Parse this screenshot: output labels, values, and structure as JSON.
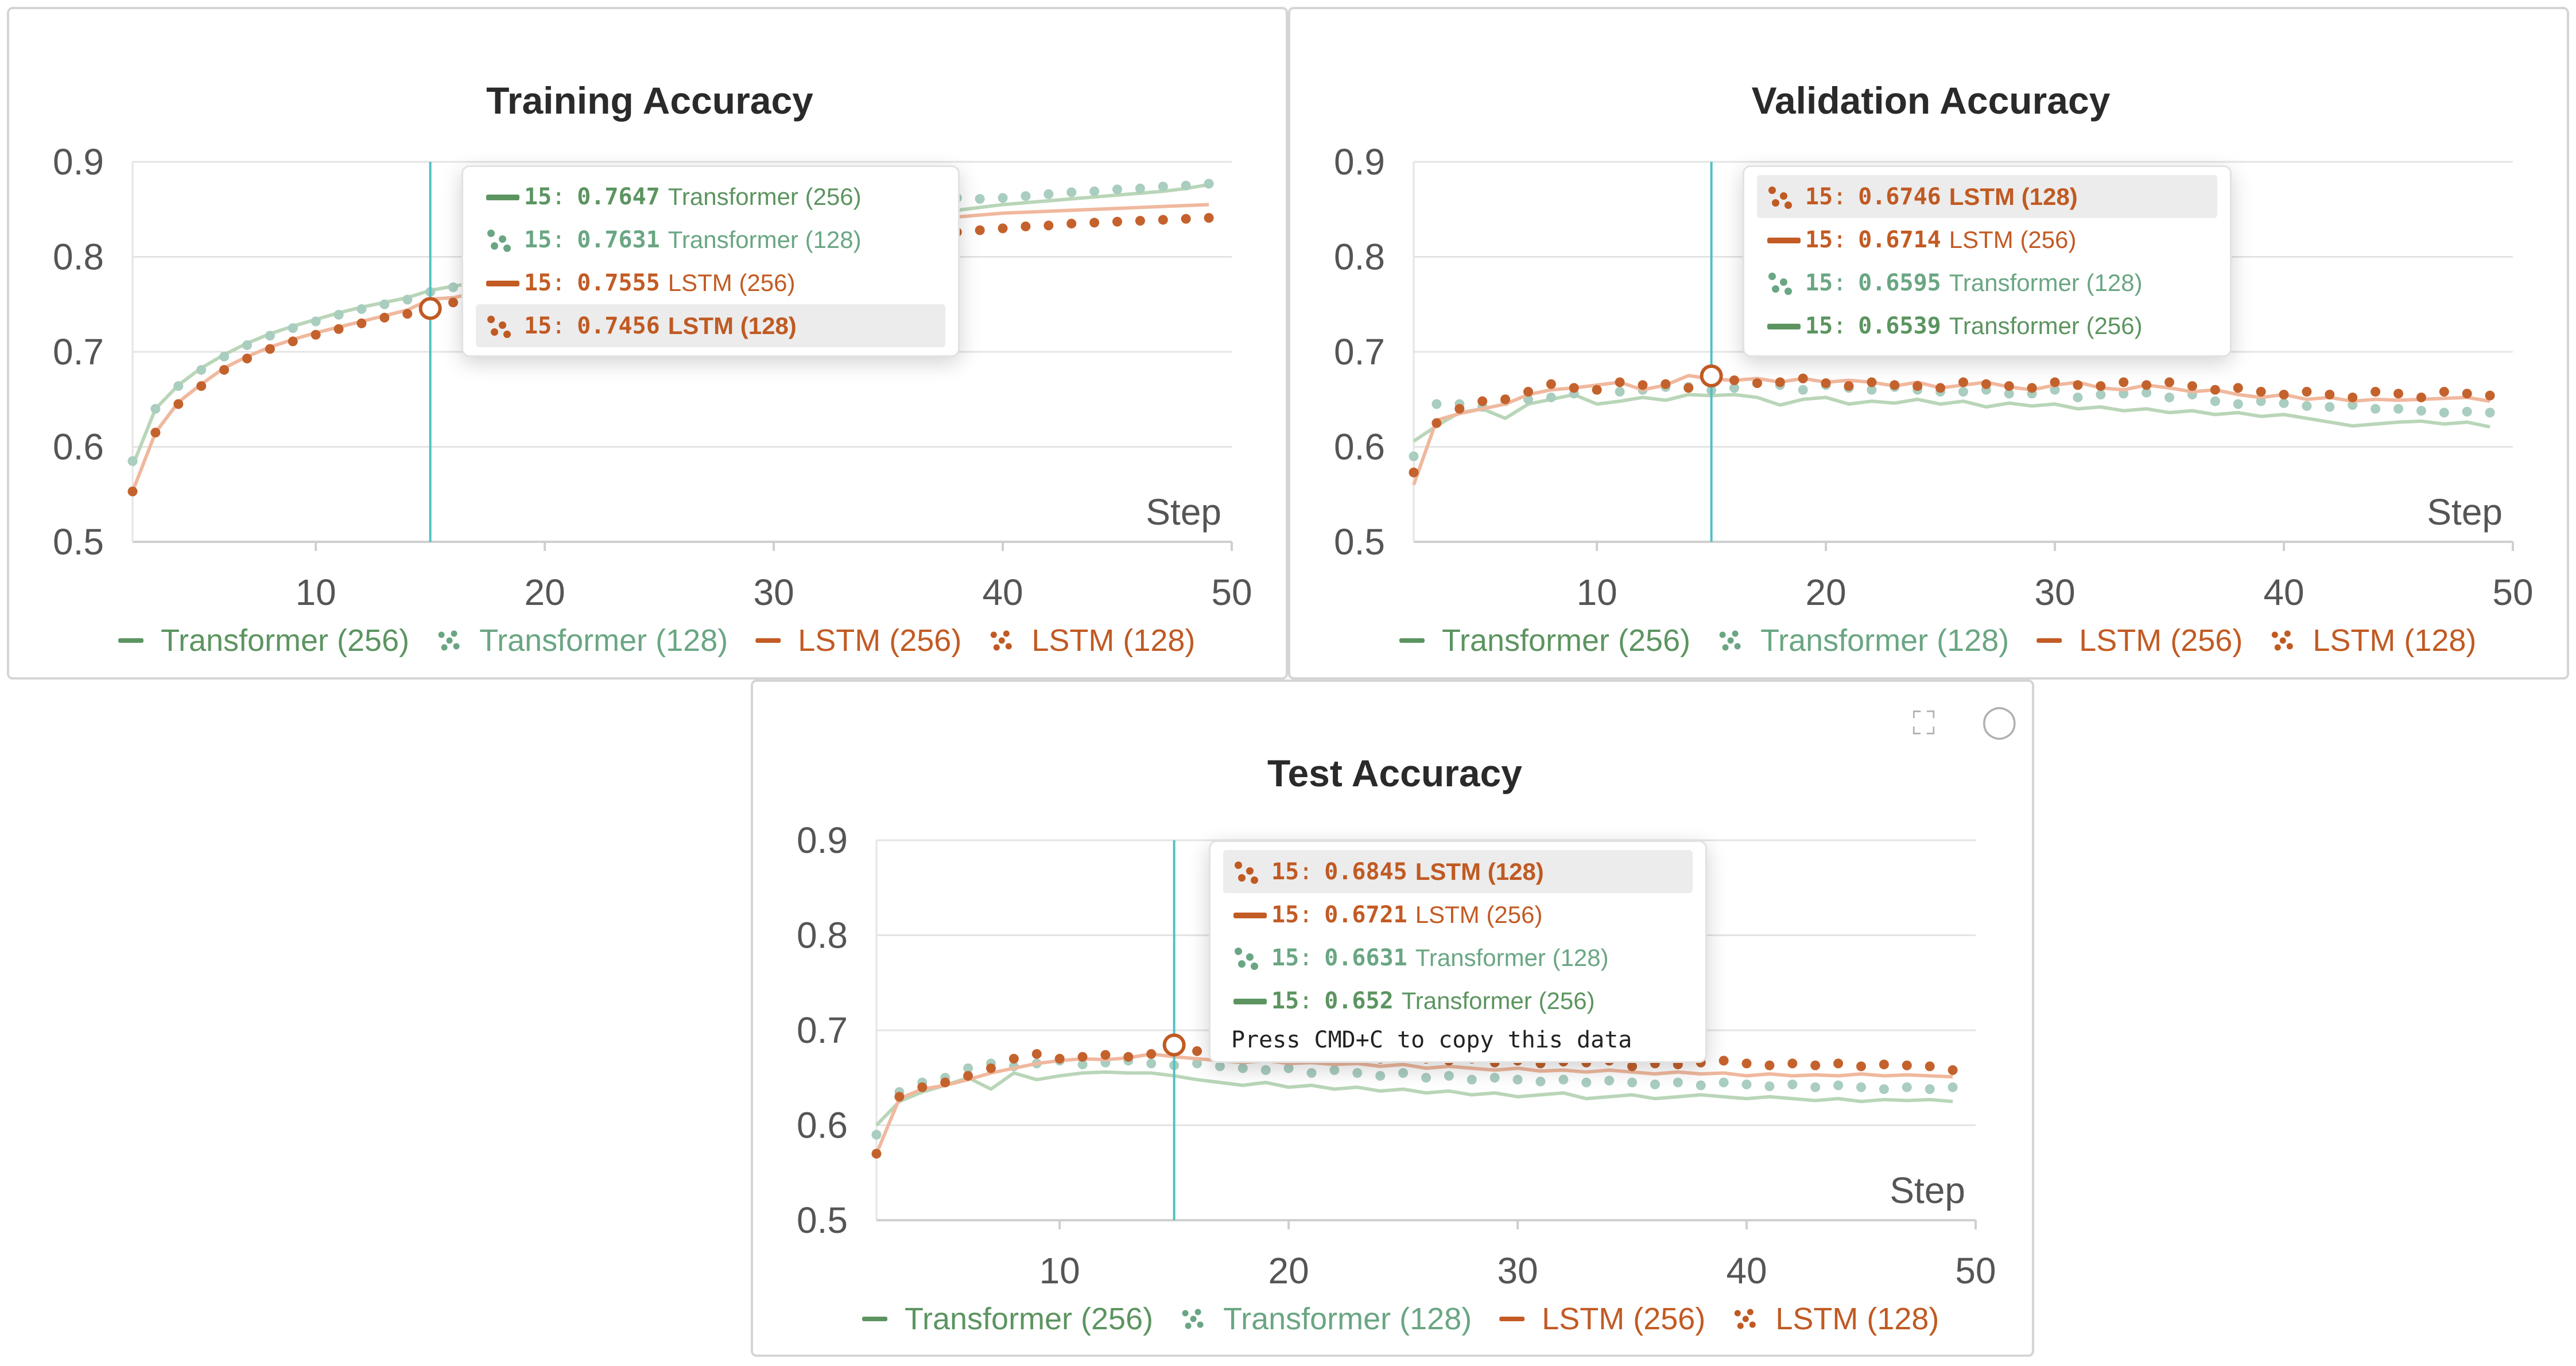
{
  "colors": {
    "transformer_256": "#5c9460",
    "transformer_128": "#6aa683",
    "lstm_256": "#c25b24",
    "lstm_128": "#c05a23",
    "transformer_256_line": "#b9d6b8",
    "transformer_128_dot": "#a9cdbf",
    "lstm_256_line": "#f0b89e",
    "lstm_128_dot": "#c4622d",
    "cursor": "#4fc1c3",
    "grid": "#e4e4e4"
  },
  "icons": {
    "expand": "expand-icon",
    "comment": "comment-icon"
  },
  "chart_data": [
    {
      "type": "line",
      "title": "Training Accuracy",
      "xlabel": "Step",
      "xlim": [
        2,
        50
      ],
      "ylim": [
        0.5,
        0.9
      ],
      "yticks": [
        "0.5",
        "0.6",
        "0.7",
        "0.8",
        "0.9"
      ],
      "xticks": [
        "10",
        "20",
        "30",
        "40",
        "50"
      ],
      "x": [
        2,
        3,
        4,
        5,
        6,
        7,
        8,
        9,
        10,
        11,
        12,
        13,
        14,
        15,
        16,
        17,
        18,
        19,
        20,
        21,
        22,
        23,
        24,
        25,
        26,
        27,
        28,
        29,
        30,
        31,
        32,
        33,
        34,
        35,
        36,
        37,
        38,
        39,
        40,
        41,
        42,
        43,
        44,
        45,
        46,
        47,
        48,
        49
      ],
      "series": [
        {
          "name": "Transformer (256)",
          "style": "line",
          "values": [
            0.58,
            0.64,
            0.665,
            0.683,
            0.697,
            0.709,
            0.719,
            0.727,
            0.734,
            0.741,
            0.747,
            0.752,
            0.757,
            0.7647,
            0.769,
            0.773,
            0.777,
            0.781,
            0.785,
            0.789,
            0.793,
            0.797,
            0.801,
            0.805,
            0.809,
            0.812,
            0.816,
            0.819,
            0.823,
            0.826,
            0.83,
            0.833,
            0.837,
            0.84,
            0.843,
            0.846,
            0.849,
            0.852,
            0.855,
            0.857,
            0.859,
            0.861,
            0.863,
            0.865,
            0.867,
            0.869,
            0.872,
            0.876
          ]
        },
        {
          "name": "Transformer (128)",
          "style": "dots",
          "values": [
            0.585,
            0.64,
            0.664,
            0.681,
            0.695,
            0.707,
            0.717,
            0.725,
            0.732,
            0.739,
            0.745,
            0.75,
            0.755,
            0.7631,
            0.768,
            0.772,
            0.776,
            0.78,
            0.784,
            0.788,
            0.792,
            0.796,
            0.8,
            0.804,
            0.808,
            0.812,
            0.816,
            0.82,
            0.824,
            0.828,
            0.832,
            0.836,
            0.84,
            0.845,
            0.85,
            0.856,
            0.862,
            0.861,
            0.862,
            0.864,
            0.866,
            0.868,
            0.869,
            0.871,
            0.872,
            0.874,
            0.875,
            0.877
          ]
        },
        {
          "name": "LSTM (256)",
          "style": "line",
          "values": [
            0.553,
            0.615,
            0.647,
            0.666,
            0.683,
            0.695,
            0.705,
            0.713,
            0.72,
            0.726,
            0.732,
            0.738,
            0.744,
            0.7555,
            0.757,
            0.762,
            0.767,
            0.772,
            0.777,
            0.782,
            0.787,
            0.791,
            0.796,
            0.8,
            0.804,
            0.808,
            0.812,
            0.816,
            0.82,
            0.823,
            0.826,
            0.829,
            0.832,
            0.835,
            0.838,
            0.84,
            0.842,
            0.844,
            0.846,
            0.847,
            0.848,
            0.849,
            0.85,
            0.851,
            0.852,
            0.853,
            0.854,
            0.855
          ]
        },
        {
          "name": "LSTM (128)",
          "style": "dots",
          "values": [
            0.553,
            0.615,
            0.645,
            0.664,
            0.681,
            0.693,
            0.703,
            0.711,
            0.718,
            0.724,
            0.73,
            0.736,
            0.74,
            0.7456,
            0.752,
            0.757,
            0.762,
            0.767,
            0.772,
            0.777,
            0.782,
            0.786,
            0.79,
            0.794,
            0.798,
            0.801,
            0.804,
            0.807,
            0.81,
            0.812,
            0.814,
            0.816,
            0.818,
            0.82,
            0.822,
            0.824,
            0.826,
            0.828,
            0.83,
            0.832,
            0.833,
            0.835,
            0.836,
            0.837,
            0.838,
            0.839,
            0.84,
            0.841
          ]
        }
      ],
      "cursor_step": 15,
      "tooltip": {
        "rows": [
          {
            "series": "Transformer (256)",
            "step": "15",
            "value": "0.7647",
            "mark": "line",
            "highlight": false
          },
          {
            "series": "Transformer (128)",
            "step": "15",
            "value": "0.7631",
            "mark": "dots",
            "highlight": false
          },
          {
            "series": "LSTM (256)",
            "step": "15",
            "value": "0.7555",
            "mark": "line",
            "highlight": false
          },
          {
            "series": "LSTM (128)",
            "step": "15",
            "value": "0.7456",
            "mark": "dots",
            "highlight": true
          }
        ]
      },
      "legend": [
        "Transformer (256)",
        "Transformer (128)",
        "LSTM (256)",
        "LSTM (128)"
      ],
      "legend_position": "bottom"
    },
    {
      "type": "line",
      "title": "Validation Accuracy",
      "xlabel": "Step",
      "xlim": [
        2,
        50
      ],
      "ylim": [
        0.5,
        0.9
      ],
      "yticks": [
        "0.5",
        "0.6",
        "0.7",
        "0.8",
        "0.9"
      ],
      "xticks": [
        "10",
        "20",
        "30",
        "40",
        "50"
      ],
      "x": [
        2,
        3,
        4,
        5,
        6,
        7,
        8,
        9,
        10,
        11,
        12,
        13,
        14,
        15,
        16,
        17,
        18,
        19,
        20,
        21,
        22,
        23,
        24,
        25,
        26,
        27,
        28,
        29,
        30,
        31,
        32,
        33,
        34,
        35,
        36,
        37,
        38,
        39,
        40,
        41,
        42,
        43,
        44,
        45,
        46,
        47,
        48,
        49
      ],
      "series": [
        {
          "name": "Transformer (256)",
          "style": "line",
          "values": [
            0.606,
            0.622,
            0.636,
            0.64,
            0.63,
            0.645,
            0.65,
            0.655,
            0.645,
            0.648,
            0.652,
            0.649,
            0.655,
            0.6539,
            0.655,
            0.652,
            0.644,
            0.65,
            0.652,
            0.645,
            0.648,
            0.646,
            0.65,
            0.645,
            0.648,
            0.642,
            0.646,
            0.643,
            0.645,
            0.64,
            0.642,
            0.638,
            0.64,
            0.636,
            0.638,
            0.634,
            0.636,
            0.632,
            0.634,
            0.63,
            0.626,
            0.622,
            0.624,
            0.626,
            0.627,
            0.624,
            0.626,
            0.621
          ]
        },
        {
          "name": "Transformer (128)",
          "style": "dots",
          "values": [
            0.59,
            0.645,
            0.645,
            0.642,
            0.648,
            0.65,
            0.652,
            0.656,
            0.66,
            0.658,
            0.66,
            0.663,
            0.663,
            0.6595,
            0.662,
            0.668,
            0.665,
            0.66,
            0.665,
            0.662,
            0.66,
            0.663,
            0.66,
            0.658,
            0.658,
            0.66,
            0.656,
            0.656,
            0.66,
            0.652,
            0.655,
            0.656,
            0.657,
            0.652,
            0.655,
            0.648,
            0.645,
            0.648,
            0.646,
            0.643,
            0.642,
            0.644,
            0.64,
            0.64,
            0.638,
            0.636,
            0.637,
            0.636
          ]
        },
        {
          "name": "LSTM (256)",
          "style": "line",
          "values": [
            0.56,
            0.628,
            0.635,
            0.64,
            0.645,
            0.655,
            0.66,
            0.662,
            0.665,
            0.668,
            0.66,
            0.665,
            0.675,
            0.6714,
            0.67,
            0.672,
            0.668,
            0.672,
            0.668,
            0.67,
            0.668,
            0.664,
            0.668,
            0.662,
            0.665,
            0.668,
            0.663,
            0.66,
            0.665,
            0.668,
            0.662,
            0.66,
            0.665,
            0.662,
            0.658,
            0.66,
            0.655,
            0.652,
            0.655,
            0.65,
            0.652,
            0.648,
            0.65,
            0.649,
            0.65,
            0.651,
            0.652,
            0.648
          ]
        },
        {
          "name": "LSTM (128)",
          "style": "dots",
          "values": [
            0.573,
            0.625,
            0.64,
            0.648,
            0.65,
            0.658,
            0.666,
            0.662,
            0.66,
            0.668,
            0.665,
            0.666,
            0.662,
            0.6746,
            0.67,
            0.667,
            0.668,
            0.672,
            0.667,
            0.664,
            0.668,
            0.665,
            0.664,
            0.662,
            0.668,
            0.666,
            0.664,
            0.662,
            0.668,
            0.665,
            0.664,
            0.668,
            0.665,
            0.668,
            0.664,
            0.66,
            0.662,
            0.658,
            0.655,
            0.658,
            0.655,
            0.652,
            0.658,
            0.656,
            0.652,
            0.658,
            0.656,
            0.654
          ]
        }
      ],
      "cursor_step": 15,
      "tooltip": {
        "rows": [
          {
            "series": "LSTM (128)",
            "step": "15",
            "value": "0.6746",
            "mark": "dots",
            "highlight": true
          },
          {
            "series": "LSTM (256)",
            "step": "15",
            "value": "0.6714",
            "mark": "line",
            "highlight": false
          },
          {
            "series": "Transformer (128)",
            "step": "15",
            "value": "0.6595",
            "mark": "dots",
            "highlight": false
          },
          {
            "series": "Transformer (256)",
            "step": "15",
            "value": "0.6539",
            "mark": "line",
            "highlight": false
          }
        ]
      },
      "legend": [
        "Transformer (256)",
        "Transformer (128)",
        "LSTM (256)",
        "LSTM (128)"
      ],
      "legend_position": "bottom"
    },
    {
      "type": "line",
      "title": "Test Accuracy",
      "xlabel": "Step",
      "xlim": [
        2,
        50
      ],
      "ylim": [
        0.5,
        0.9
      ],
      "yticks": [
        "0.5",
        "0.6",
        "0.7",
        "0.8",
        "0.9"
      ],
      "xticks": [
        "10",
        "20",
        "30",
        "40",
        "50"
      ],
      "x": [
        2,
        3,
        4,
        5,
        6,
        7,
        8,
        9,
        10,
        11,
        12,
        13,
        14,
        15,
        16,
        17,
        18,
        19,
        20,
        21,
        22,
        23,
        24,
        25,
        26,
        27,
        28,
        29,
        30,
        31,
        32,
        33,
        34,
        35,
        36,
        37,
        38,
        39,
        40,
        41,
        42,
        43,
        44,
        45,
        46,
        47,
        48,
        49
      ],
      "series": [
        {
          "name": "Transformer (256)",
          "style": "line",
          "values": [
            0.6,
            0.625,
            0.635,
            0.642,
            0.65,
            0.638,
            0.655,
            0.648,
            0.652,
            0.655,
            0.656,
            0.655,
            0.655,
            0.652,
            0.648,
            0.645,
            0.642,
            0.645,
            0.64,
            0.642,
            0.638,
            0.64,
            0.636,
            0.638,
            0.634,
            0.636,
            0.632,
            0.634,
            0.63,
            0.632,
            0.634,
            0.628,
            0.63,
            0.632,
            0.628,
            0.63,
            0.632,
            0.63,
            0.628,
            0.63,
            0.628,
            0.626,
            0.628,
            0.625,
            0.627,
            0.626,
            0.627,
            0.625
          ]
        },
        {
          "name": "Transformer (128)",
          "style": "dots",
          "values": [
            0.59,
            0.635,
            0.645,
            0.65,
            0.66,
            0.665,
            0.662,
            0.665,
            0.668,
            0.664,
            0.666,
            0.668,
            0.665,
            0.6631,
            0.665,
            0.662,
            0.66,
            0.658,
            0.66,
            0.655,
            0.658,
            0.655,
            0.652,
            0.655,
            0.65,
            0.652,
            0.648,
            0.65,
            0.648,
            0.646,
            0.648,
            0.645,
            0.647,
            0.645,
            0.643,
            0.645,
            0.642,
            0.645,
            0.643,
            0.641,
            0.643,
            0.64,
            0.642,
            0.64,
            0.638,
            0.64,
            0.638,
            0.64
          ]
        },
        {
          "name": "LSTM (256)",
          "style": "line",
          "values": [
            0.57,
            0.628,
            0.638,
            0.642,
            0.648,
            0.655,
            0.66,
            0.665,
            0.668,
            0.67,
            0.669,
            0.671,
            0.675,
            0.6721,
            0.67,
            0.668,
            0.666,
            0.668,
            0.665,
            0.666,
            0.664,
            0.665,
            0.662,
            0.664,
            0.66,
            0.662,
            0.66,
            0.658,
            0.66,
            0.657,
            0.658,
            0.656,
            0.658,
            0.656,
            0.654,
            0.656,
            0.654,
            0.655,
            0.652,
            0.654,
            0.652,
            0.653,
            0.652,
            0.654,
            0.652,
            0.653,
            0.652,
            0.651
          ]
        },
        {
          "name": "LSTM (128)",
          "style": "dots",
          "values": [
            0.57,
            0.63,
            0.64,
            0.645,
            0.652,
            0.66,
            0.67,
            0.675,
            0.67,
            0.672,
            0.674,
            0.672,
            0.675,
            0.6845,
            0.678,
            0.68,
            0.676,
            0.678,
            0.674,
            0.676,
            0.672,
            0.674,
            0.67,
            0.672,
            0.67,
            0.668,
            0.67,
            0.666,
            0.668,
            0.665,
            0.667,
            0.666,
            0.668,
            0.662,
            0.665,
            0.664,
            0.666,
            0.668,
            0.665,
            0.663,
            0.665,
            0.663,
            0.665,
            0.662,
            0.664,
            0.663,
            0.662,
            0.658
          ]
        }
      ],
      "cursor_step": 15,
      "tooltip": {
        "rows": [
          {
            "series": "LSTM (128)",
            "step": "15",
            "value": "0.6845",
            "mark": "dots",
            "highlight": true
          },
          {
            "series": "LSTM (256)",
            "step": "15",
            "value": "0.6721",
            "mark": "line",
            "highlight": false
          },
          {
            "series": "Transformer (128)",
            "step": "15",
            "value": "0.6631",
            "mark": "dots",
            "highlight": false
          },
          {
            "series": "Transformer (256)",
            "step": "15",
            "value": "0.652",
            "mark": "line",
            "highlight": false
          }
        ],
        "note": "Press CMD+C to copy this data"
      },
      "legend": [
        "Transformer (256)",
        "Transformer (128)",
        "LSTM (256)",
        "LSTM (128)"
      ],
      "legend_position": "bottom"
    }
  ]
}
